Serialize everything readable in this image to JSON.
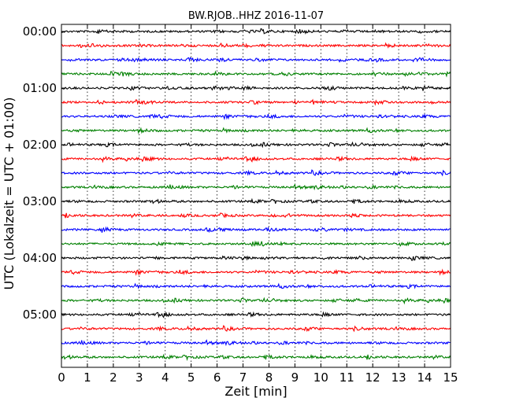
{
  "chart_data": {
    "type": "line",
    "title": "BW.RJOB..HHZ 2016-11-07",
    "xlabel": "Zeit  [min]",
    "ylabel": "UTC (Lokalzeit = UTC + 01:00)",
    "xlim": [
      0,
      15
    ],
    "x_ticks": [
      0,
      1,
      2,
      3,
      4,
      5,
      6,
      7,
      8,
      9,
      10,
      11,
      12,
      13,
      14,
      15
    ],
    "x_tick_labels": [
      "0",
      "1",
      "2",
      "3",
      "4",
      "5",
      "6",
      "7",
      "8",
      "9",
      "10",
      "11",
      "12",
      "13",
      "14",
      "15"
    ],
    "y_tick_labels": [
      "00:00",
      "01:00",
      "02:00",
      "03:00",
      "04:00",
      "05:00"
    ],
    "grid": {
      "x": true,
      "y": false
    },
    "trace_colors": [
      "#000000",
      "#ff0000",
      "#0000ff",
      "#008000"
    ],
    "traces_per_hour": 4,
    "minutes_per_trace": 15,
    "trace_start_times": [
      "00:00",
      "00:15",
      "00:30",
      "00:45",
      "01:00",
      "01:15",
      "01:30",
      "01:45",
      "02:00",
      "02:15",
      "02:30",
      "02:45",
      "03:00",
      "03:15",
      "03:30",
      "03:45",
      "04:00",
      "04:15",
      "04:30",
      "04:45",
      "05:00",
      "05:15",
      "05:30",
      "05:45"
    ],
    "legend": "none"
  }
}
